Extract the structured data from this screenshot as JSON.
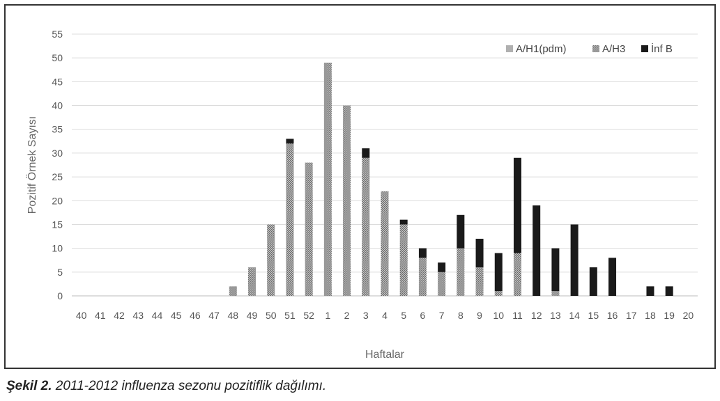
{
  "caption": {
    "label": "Şekil 2.",
    "text": " 2011-2012 influenza sezonu pozitiflik dağılımı."
  },
  "chart_data": {
    "type": "bar",
    "stacked": true,
    "xlabel": "Haftalar",
    "ylabel": "Pozitif Örnek Sayısı",
    "ylim": [
      0,
      55
    ],
    "yticks": [
      0,
      5,
      10,
      15,
      20,
      25,
      30,
      35,
      40,
      45,
      50,
      55
    ],
    "grid": true,
    "legend_position": "top-right",
    "categories": [
      "40",
      "41",
      "42",
      "43",
      "44",
      "45",
      "46",
      "47",
      "48",
      "49",
      "50",
      "51",
      "52",
      "1",
      "2",
      "3",
      "4",
      "5",
      "6",
      "7",
      "8",
      "9",
      "10",
      "11",
      "12",
      "13",
      "14",
      "15",
      "16",
      "17",
      "18",
      "19",
      "20"
    ],
    "series": [
      {
        "name": "A/H1(pdm)",
        "color": "#b0b0b0",
        "pattern": "solid",
        "values": [
          0,
          0,
          0,
          0,
          0,
          0,
          0,
          0,
          0,
          0,
          0,
          0,
          0,
          0,
          0,
          0,
          0,
          0,
          0,
          0,
          0,
          0,
          0,
          0,
          0,
          0,
          0,
          0,
          0,
          0,
          0,
          0,
          0
        ]
      },
      {
        "name": "A/H3",
        "color": "#888888",
        "pattern": "checker",
        "values": [
          0,
          0,
          0,
          0,
          0,
          0,
          0,
          0,
          2,
          6,
          15,
          32,
          28,
          49,
          40,
          29,
          22,
          15,
          8,
          5,
          10,
          6,
          1,
          9,
          0,
          1,
          0,
          0,
          0,
          0,
          0,
          0,
          0
        ]
      },
      {
        "name": "İnf B",
        "color": "#1a1a1a",
        "pattern": "solid",
        "values": [
          0,
          0,
          0,
          0,
          0,
          0,
          0,
          0,
          0,
          0,
          0,
          1,
          0,
          0,
          0,
          2,
          0,
          1,
          2,
          2,
          7,
          6,
          8,
          20,
          19,
          9,
          15,
          6,
          8,
          0,
          2,
          2,
          0
        ]
      }
    ]
  }
}
